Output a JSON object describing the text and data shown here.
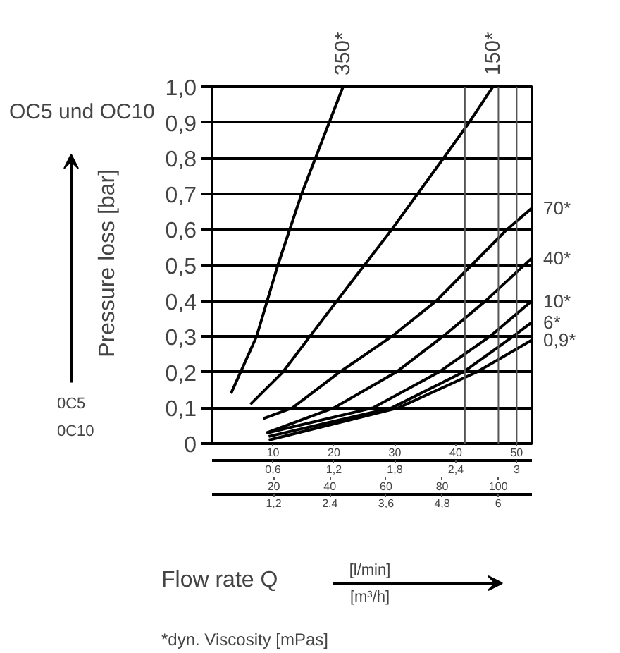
{
  "chart_data": {
    "type": "line",
    "title": "OC5 und OC10",
    "xlabel": "Flow rate Q",
    "ylabel": "Pressure loss [bar]",
    "annotations": [
      "[l/min]",
      "[m³/h]",
      "*dyn. Viscosity [mPas]",
      "0C5",
      "0C10",
      "0,6",
      "1,2",
      "1,8",
      "2,4",
      "3",
      "1,2",
      "2,4",
      "3,6",
      "4,8",
      "6"
    ],
    "xlim": [
      0,
      52.5
    ],
    "xticks": [
      10,
      20,
      30,
      40,
      50
    ],
    "x2lim": [
      -2,
      112
    ],
    "x2ticks": [
      20,
      40,
      60,
      80,
      100
    ],
    "ylim": [
      0,
      1.0
    ],
    "yticks": [
      0,
      {
        "value": 0.1,
        "label": "0,1"
      },
      {
        "value": 0.2,
        "label": "0,2"
      },
      {
        "value": 0.3,
        "label": "0,3"
      },
      {
        "value": 0.4,
        "label": "0,4"
      },
      {
        "value": 0.5,
        "label": "0,5"
      },
      {
        "value": 0.6,
        "label": "0,6"
      },
      {
        "value": 0.7,
        "label": "0,7"
      },
      {
        "value": 0.8,
        "label": "0,8"
      },
      {
        "value": 0.9,
        "label": "0,9"
      },
      {
        "value": 1.0,
        "label": "1,0"
      }
    ],
    "grid": "y",
    "ref_lines": [
      {
        "axis": "x",
        "value": 41.5,
        "color": "#555555"
      },
      {
        "axis": "x",
        "value": 47,
        "color": "#555555"
      },
      {
        "axis": "x",
        "value": 50,
        "color": "#555555"
      }
    ],
    "series": [
      {
        "name": "350*",
        "color": "#000000",
        "x": [
          3.1,
          7.3,
          10.8,
          14.7,
          21.5
        ],
        "values": [
          0.14,
          0.3,
          0.5,
          0.7,
          1.0
        ]
      },
      {
        "name": "150*",
        "color": "#000000",
        "x": [
          6.3,
          11.6,
          20.5,
          29.5,
          38,
          42.2,
          46.1
        ],
        "values": [
          0.11,
          0.2,
          0.4,
          0.6,
          0.8,
          0.9,
          1.0
        ]
      },
      {
        "name": "70*",
        "color": "#000000",
        "x": [
          8.4,
          13.2,
          20.9,
          29.5,
          36.8,
          42.6,
          48.4,
          52.5
        ],
        "values": [
          0.07,
          0.1,
          0.2,
          0.3,
          0.4,
          0.5,
          0.6,
          0.66
        ]
      },
      {
        "name": "40*",
        "color": "#000000",
        "x": [
          8.9,
          20,
          30.2,
          37.9,
          44.9,
          52.5
        ],
        "values": [
          0.03,
          0.1,
          0.2,
          0.3,
          0.4,
          0.52
        ]
      },
      {
        "name": "10*",
        "color": "#000000",
        "x": [
          9.1,
          26.4,
          37.2,
          45.6,
          52.5
        ],
        "values": [
          0.03,
          0.1,
          0.2,
          0.3,
          0.4
        ]
      },
      {
        "name": "6*",
        "color": "#000000",
        "x": [
          9.3,
          29.5,
          41.2,
          49.4,
          52.5
        ],
        "values": [
          0.02,
          0.1,
          0.2,
          0.3,
          0.34
        ]
      },
      {
        "name": "0,9*",
        "color": "#000000",
        "x": [
          9.3,
          30.6,
          43.4,
          52.5
        ],
        "values": [
          0.01,
          0.1,
          0.2,
          0.29
        ]
      }
    ]
  }
}
